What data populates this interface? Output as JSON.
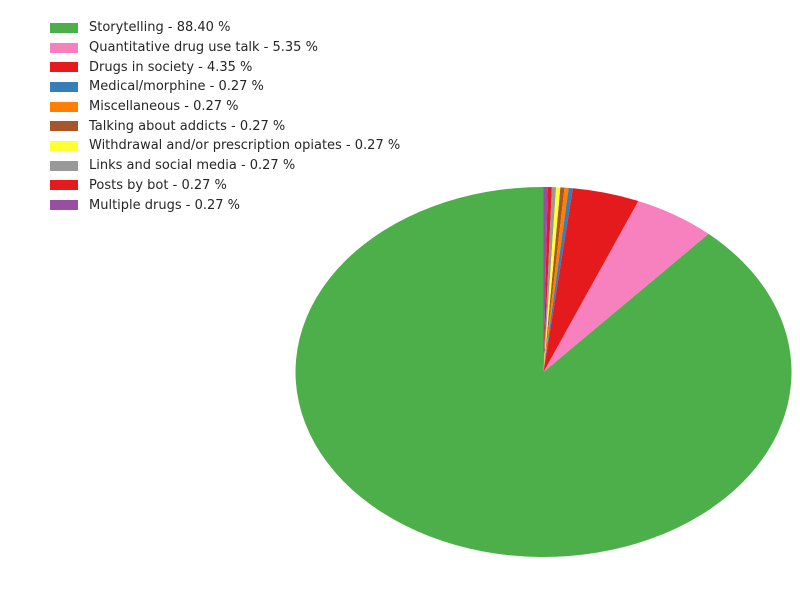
{
  "chart_data": {
    "type": "pie",
    "title": "",
    "legend_position": "top-left",
    "start_angle_deg": 90,
    "direction": "counterclockwise",
    "slices": [
      {
        "label": "Storytelling - 88.40 %",
        "name": "Storytelling",
        "value": 88.4,
        "color": "#4daf4a"
      },
      {
        "label": "Quantitative drug use talk - 5.35 %",
        "name": "Quantitative drug use talk",
        "value": 5.35,
        "color": "#f781bf"
      },
      {
        "label": "Drugs in society - 4.35 %",
        "name": "Drugs in society",
        "value": 4.35,
        "color": "#e41a1c"
      },
      {
        "label": "Medical/morphine - 0.27 %",
        "name": "Medical/morphine",
        "value": 0.27,
        "color": "#377eb8"
      },
      {
        "label": "Miscellaneous - 0.27 %",
        "name": "Miscellaneous",
        "value": 0.27,
        "color": "#ff7f00"
      },
      {
        "label": "Talking about addicts - 0.27 %",
        "name": "Talking about addicts",
        "value": 0.27,
        "color": "#a65628"
      },
      {
        "label": "Withdrawal and/or prescription opiates - 0.27 %",
        "name": "Withdrawal and/or prescription opiates",
        "value": 0.27,
        "color": "#ffff33"
      },
      {
        "label": "Links and social media - 0.27 %",
        "name": "Links and social media",
        "value": 0.27,
        "color": "#999999"
      },
      {
        "label": "Posts by bot - 0.27 %",
        "name": "Posts by bot",
        "value": 0.27,
        "color": "#e41a1c"
      },
      {
        "label": "Multiple drugs - 0.27 %",
        "name": "Multiple drugs",
        "value": 0.27,
        "color": "#984ea3"
      }
    ],
    "draw_order": [
      "Posts by bot",
      "Links and social media",
      "Quantitative drug use talk",
      "Talking about addicts",
      "Withdrawal and/or prescription opiates",
      "Miscellaneous",
      "Multiple drugs",
      "Storytelling",
      "Medical/morphine",
      "Drugs in society"
    ]
  }
}
